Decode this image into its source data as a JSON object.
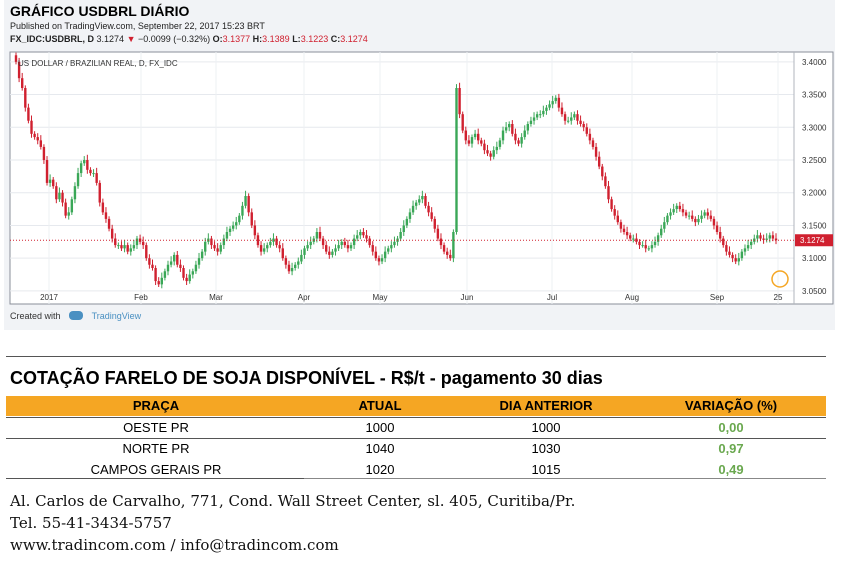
{
  "header": {
    "title": "GRÁFICO USDBRL DIÁRIO",
    "published": "Published on TradingView.com, September 22, 2017 15:23 BRT",
    "symbol": "FX_IDC:USDBRL, D",
    "last": "3.1274",
    "change": "−0.0099 (−0.32%)",
    "open_label": "O:",
    "open": "3.1377",
    "high_label": "H:",
    "high": "3.1389",
    "low_label": "L:",
    "low": "3.1223",
    "close_label": "C:",
    "close": "3.1274"
  },
  "chart_data": {
    "type": "candlestick",
    "series_label": "US DOLLAR / BRAZILIAN REAL, D, FX_IDC",
    "ylim": [
      3.03,
      3.415
    ],
    "y_ticks": [
      "3.4000",
      "3.3500",
      "3.3000",
      "3.2500",
      "3.2000",
      "3.1500",
      "3.1000",
      "3.0500"
    ],
    "x_ticks": [
      "2017",
      "Feb",
      "Mar",
      "Apr",
      "May",
      "Jun",
      "Jul",
      "Aug",
      "Sep",
      "25"
    ],
    "last_price": 3.1274,
    "last_price_label": "3.1274",
    "up_color": "#3aa757",
    "down_color": "#d0202f",
    "closes": [
      3.4,
      3.375,
      3.36,
      3.33,
      3.31,
      3.29,
      3.285,
      3.28,
      3.27,
      3.25,
      3.215,
      3.22,
      3.21,
      3.19,
      3.2,
      3.185,
      3.165,
      3.17,
      3.19,
      3.21,
      3.23,
      3.245,
      3.25,
      3.235,
      3.23,
      3.23,
      3.215,
      3.185,
      3.17,
      3.16,
      3.145,
      3.13,
      3.12,
      3.12,
      3.115,
      3.12,
      3.11,
      3.115,
      3.12,
      3.13,
      3.125,
      3.12,
      3.1,
      3.09,
      3.085,
      3.065,
      3.06,
      3.07,
      3.08,
      3.09,
      3.095,
      3.105,
      3.09,
      3.085,
      3.07,
      3.065,
      3.075,
      3.08,
      3.09,
      3.1,
      3.11,
      3.125,
      3.13,
      3.12,
      3.115,
      3.11,
      3.12,
      3.13,
      3.14,
      3.145,
      3.15,
      3.155,
      3.165,
      3.18,
      3.195,
      3.17,
      3.15,
      3.135,
      3.12,
      3.11,
      3.115,
      3.12,
      3.125,
      3.13,
      3.12,
      3.115,
      3.1,
      3.09,
      3.08,
      3.085,
      3.09,
      3.095,
      3.105,
      3.115,
      3.12,
      3.125,
      3.13,
      3.14,
      3.13,
      3.12,
      3.11,
      3.105,
      3.11,
      3.115,
      3.12,
      3.125,
      3.12,
      3.115,
      3.12,
      3.13,
      3.135,
      3.14,
      3.135,
      3.13,
      3.12,
      3.11,
      3.1,
      3.095,
      3.1,
      3.11,
      3.115,
      3.12,
      3.125,
      3.13,
      3.14,
      3.15,
      3.16,
      3.17,
      3.18,
      3.185,
      3.19,
      3.195,
      3.18,
      3.17,
      3.16,
      3.145,
      3.13,
      3.12,
      3.11,
      3.105,
      3.1,
      3.14,
      3.36,
      3.32,
      3.295,
      3.28,
      3.275,
      3.285,
      3.29,
      3.28,
      3.275,
      3.265,
      3.26,
      3.255,
      3.265,
      3.27,
      3.28,
      3.295,
      3.3,
      3.305,
      3.29,
      3.28,
      3.275,
      3.285,
      3.295,
      3.305,
      3.31,
      3.315,
      3.32,
      3.32,
      3.325,
      3.33,
      3.335,
      3.34,
      3.345,
      3.33,
      3.32,
      3.31,
      3.31,
      3.315,
      3.32,
      3.31,
      3.305,
      3.3,
      3.29,
      3.28,
      3.27,
      3.255,
      3.24,
      3.225,
      3.21,
      3.19,
      3.175,
      3.165,
      3.155,
      3.145,
      3.14,
      3.135,
      3.13,
      3.13,
      3.125,
      3.12,
      3.12,
      3.115,
      3.115,
      3.12,
      3.125,
      3.135,
      3.145,
      3.155,
      3.165,
      3.17,
      3.175,
      3.18,
      3.175,
      3.17,
      3.165,
      3.165,
      3.16,
      3.155,
      3.16,
      3.165,
      3.17,
      3.165,
      3.16,
      3.15,
      3.14,
      3.13,
      3.12,
      3.11,
      3.105,
      3.1,
      3.095,
      3.1,
      3.11,
      3.115,
      3.12,
      3.125,
      3.13,
      3.135,
      3.13,
      3.128,
      3.13,
      3.135,
      3.13,
      3.1274
    ]
  },
  "footer_chart": {
    "created_with": "Created with",
    "tradingview": "TradingView"
  },
  "table": {
    "title": "COTAÇÃO FARELO DE SOJA DISPONÍVEL - R$/t - pagamento 30 dias",
    "headers": [
      "PRAÇA",
      "ATUAL",
      "DIA ANTERIOR",
      "VARIAÇÃO (%)"
    ],
    "rows": [
      {
        "praca": "OESTE PR",
        "atual": "1000",
        "anterior": "1000",
        "variacao": "0,00"
      },
      {
        "praca": "NORTE PR",
        "atual": "1040",
        "anterior": "1030",
        "variacao": "0,97"
      },
      {
        "praca": "CAMPOS GERAIS PR",
        "atual": "1020",
        "anterior": "1015",
        "variacao": "0,49"
      }
    ],
    "header_color": "#f5a623",
    "variation_color": "#6aa84f"
  },
  "contact": {
    "address": "Al. Carlos de Carvalho, 771, Cond. Wall Street Center, sl. 405, Curitiba/Pr.",
    "phone": "Tel. 55-41-3434-5757",
    "web": "www.tradincom.com / info@tradincom.com"
  }
}
